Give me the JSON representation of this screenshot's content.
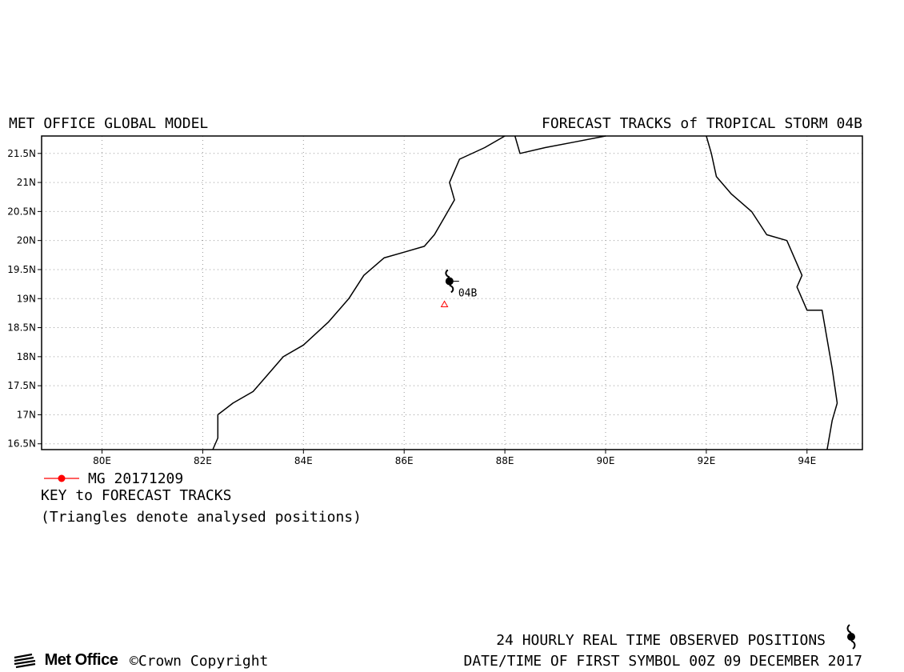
{
  "header": {
    "left_title": "MET OFFICE GLOBAL MODEL",
    "right_title": "FORECAST TRACKS of TROPICAL STORM 04B"
  },
  "map": {
    "lon_range": [
      78.8,
      95.1
    ],
    "lat_range": [
      16.4,
      21.8
    ],
    "lon_ticks": [
      {
        "value": 80,
        "label": "80E"
      },
      {
        "value": 82,
        "label": "82E"
      },
      {
        "value": 84,
        "label": "84E"
      },
      {
        "value": 86,
        "label": "86E"
      },
      {
        "value": 88,
        "label": "88E"
      },
      {
        "value": 90,
        "label": "90E"
      },
      {
        "value": 92,
        "label": "92E"
      },
      {
        "value": 94,
        "label": "94E"
      }
    ],
    "lat_ticks": [
      {
        "value": 16.5,
        "label": "16.5N"
      },
      {
        "value": 17,
        "label": "17N"
      },
      {
        "value": 17.5,
        "label": "17.5N"
      },
      {
        "value": 18,
        "label": "18N"
      },
      {
        "value": 18.5,
        "label": "18.5N"
      },
      {
        "value": 19,
        "label": "19N"
      },
      {
        "value": 19.5,
        "label": "19.5N"
      },
      {
        "value": 20,
        "label": "20N"
      },
      {
        "value": 20.5,
        "label": "20.5N"
      },
      {
        "value": 21,
        "label": "21N"
      },
      {
        "value": 21.5,
        "label": "21.5N"
      }
    ],
    "grid": "dotted",
    "coastlines": [
      [
        [
          82.2,
          16.4
        ],
        [
          82.3,
          16.6
        ],
        [
          82.3,
          17.0
        ],
        [
          82.6,
          17.2
        ],
        [
          83.0,
          17.4
        ],
        [
          83.3,
          17.7
        ],
        [
          83.6,
          18.0
        ],
        [
          84.0,
          18.2
        ],
        [
          84.5,
          18.6
        ],
        [
          84.9,
          19.0
        ],
        [
          85.2,
          19.4
        ],
        [
          85.6,
          19.7
        ],
        [
          86.0,
          19.8
        ],
        [
          86.4,
          19.9
        ],
        [
          86.6,
          20.1
        ],
        [
          86.8,
          20.4
        ],
        [
          87.0,
          20.7
        ],
        [
          86.9,
          21.0
        ],
        [
          87.1,
          21.4
        ],
        [
          87.6,
          21.6
        ],
        [
          88.0,
          21.8
        ]
      ],
      [
        [
          88.2,
          21.8
        ],
        [
          88.3,
          21.5
        ],
        [
          88.8,
          21.6
        ],
        [
          89.4,
          21.7
        ],
        [
          90.0,
          21.8
        ]
      ],
      [
        [
          92.0,
          21.8
        ],
        [
          92.1,
          21.5
        ],
        [
          92.2,
          21.1
        ],
        [
          92.5,
          20.8
        ],
        [
          92.9,
          20.5
        ],
        [
          93.2,
          20.1
        ],
        [
          93.6,
          20.0
        ],
        [
          93.8,
          19.6
        ],
        [
          93.9,
          19.4
        ],
        [
          93.8,
          19.2
        ],
        [
          94.0,
          18.8
        ],
        [
          94.3,
          18.8
        ],
        [
          94.4,
          18.3
        ],
        [
          94.5,
          17.8
        ],
        [
          94.6,
          17.2
        ],
        [
          94.5,
          16.9
        ],
        [
          94.4,
          16.4
        ]
      ]
    ],
    "storm": {
      "label": "04B",
      "observed": {
        "lon": 86.9,
        "lat": 19.3
      },
      "analysed": {
        "lon": 86.8,
        "lat": 18.9
      }
    }
  },
  "legend": {
    "track_label": "MG 20171209",
    "track_color": "#ff0000",
    "key_title": "KEY to FORECAST TRACKS",
    "key_note": "(Triangles denote analysed positions)"
  },
  "footer": {
    "observed_note": "24 HOURLY REAL TIME OBSERVED POSITIONS",
    "date_note": "DATE/TIME OF FIRST SYMBOL 00Z 09 DECEMBER 2017",
    "logo_text": "Met Office",
    "copyright": "©Crown Copyright",
    "cyclone_icon": "tropical-cyclone-icon"
  }
}
